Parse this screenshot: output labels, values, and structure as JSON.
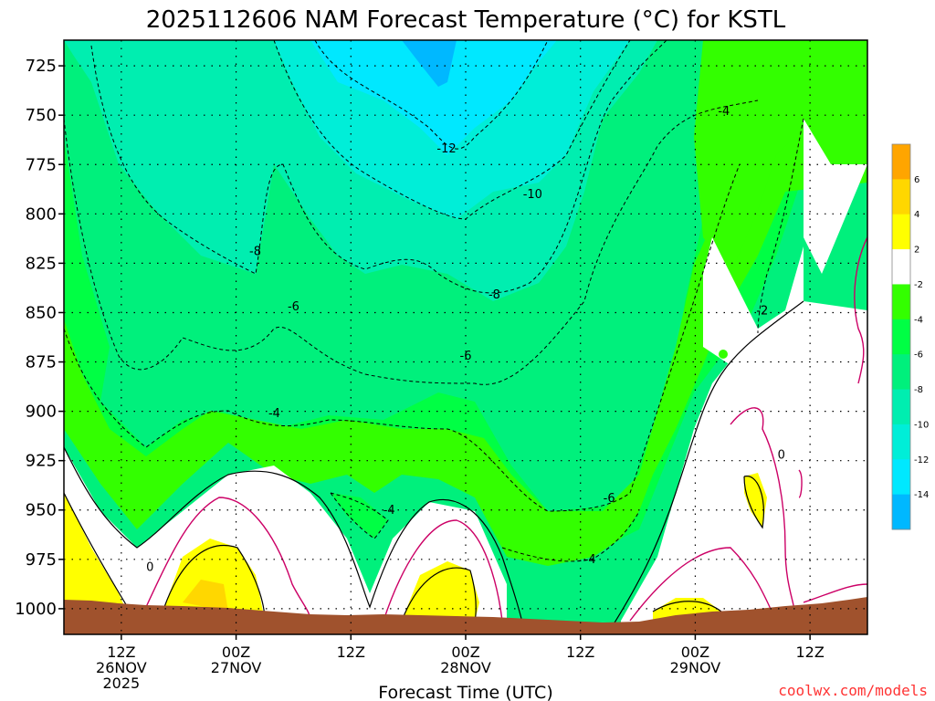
{
  "chart_data": {
    "type": "contour-time-height",
    "title": "2025112606 NAM Forecast Temperature (°C) for KSTL",
    "xlabel": "Forecast Time (UTC)",
    "y_ticks": [
      "725",
      "750",
      "775",
      "800",
      "825",
      "850",
      "875",
      "900",
      "925",
      "950",
      "975",
      "1000"
    ],
    "ylim": [
      1013,
      712
    ],
    "x_ticks": [
      {
        "label": "12Z",
        "date": "26NOV",
        "year": "2025",
        "hour": 6
      },
      {
        "label": "00Z",
        "date": "27NOV",
        "year": "",
        "hour": 18
      },
      {
        "label": "12Z",
        "date": "",
        "year": "",
        "hour": 30
      },
      {
        "label": "00Z",
        "date": "28NOV",
        "year": "",
        "hour": 42
      },
      {
        "label": "12Z",
        "date": "",
        "year": "",
        "hour": 54
      },
      {
        "label": "00Z",
        "date": "29NOV",
        "year": "",
        "hour": 66
      },
      {
        "label": "12Z",
        "date": "",
        "year": "",
        "hour": 78
      }
    ],
    "xlim": [
      0,
      84
    ],
    "grid": true,
    "colorbar": {
      "levels": [
        "6",
        "4",
        "2",
        "-2",
        "-4",
        "-6",
        "-8",
        "-10",
        "-12",
        "-14"
      ],
      "colors": [
        "#ffa500",
        "#ffd700",
        "#ffff00",
        "#ffffff",
        "#33ff00",
        "#00ff44",
        "#00f07c",
        "#00eeb0",
        "#00eed8",
        "#00e8ff",
        "#00b8ff"
      ]
    },
    "contour_labels": [
      {
        "text": "-12",
        "hour": 40,
        "hpa": 768
      },
      {
        "text": "-10",
        "hour": 49,
        "hpa": 791
      },
      {
        "text": "-8",
        "hour": 20,
        "hpa": 820
      },
      {
        "text": "-8",
        "hour": 45,
        "hpa": 842
      },
      {
        "text": "-6",
        "hour": 24,
        "hpa": 848
      },
      {
        "text": "-6",
        "hour": 42,
        "hpa": 873
      },
      {
        "text": "-4",
        "hour": 22,
        "hpa": 902
      },
      {
        "text": "-4",
        "hour": 34,
        "hpa": 951
      },
      {
        "text": "-4",
        "hour": 55,
        "hpa": 976
      },
      {
        "text": "-6",
        "hour": 57,
        "hpa": 945
      },
      {
        "text": "-4",
        "hour": 69,
        "hpa": 749
      },
      {
        "text": "-2",
        "hour": 73,
        "hpa": 850
      },
      {
        "text": "0",
        "hour": 9,
        "hpa": 980
      },
      {
        "text": "0",
        "hour": 75,
        "hpa": 923
      }
    ],
    "regions_celsius": [
      {
        "range": "-12 to -14",
        "location": "aloft near 00Z 28NOV (725-745 hPa)"
      },
      {
        "range": "-10 to -12",
        "location": "725-795 hPa between 27NOV 06Z and 28NOV 06Z"
      },
      {
        "range": "-2 to -4",
        "location": "low levels 26NOV-28NOV and aloft after 29NOV 00Z"
      },
      {
        "range": "above 2",
        "location": "near surface afternoons (26NOV 12Z-18Z, 27NOV 00Z, 28NOV 00Z, 29NOV 00Z)"
      },
      {
        "range": "-2 to 2",
        "location": "below 900 hPa after 29NOV 00Z"
      }
    ],
    "terrain_color": "#a0522d"
  },
  "credit": "coolwx.com/models",
  "credit_color": "#ff3333"
}
